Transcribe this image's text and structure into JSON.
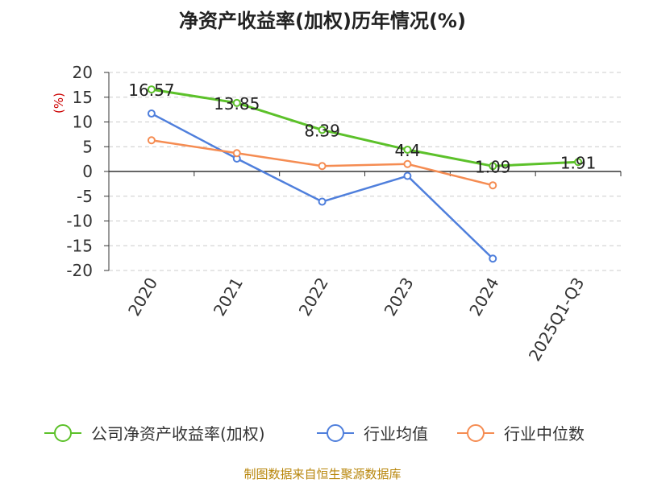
{
  "title": "净资产收益率(加权)历年情况(%)",
  "source": "制图数据来自恒生聚源数据库",
  "chart_data": {
    "type": "line",
    "title": "净资产收益率(加权)历年情况(%)",
    "ylabel": "(%)",
    "ylim": [
      -20,
      20
    ],
    "yticks": [
      20,
      15,
      10,
      5,
      0,
      -5,
      -10,
      -15,
      -20
    ],
    "categories": [
      "2020",
      "2021",
      "2022",
      "2023",
      "2024",
      "2025Q1-Q3"
    ],
    "grid": true,
    "legend_position": "bottom",
    "series": [
      {
        "name": "公司净资产收益率(加权)",
        "color": "#5cc12a",
        "values": [
          16.57,
          13.85,
          8.39,
          4.4,
          1.09,
          1.91
        ],
        "labels": [
          "16.57",
          "13.85",
          "8.39",
          "4.4",
          "1.09",
          "1.91"
        ]
      },
      {
        "name": "行业均值",
        "color": "#4f7fdc",
        "values": [
          11.7,
          2.6,
          -6.1,
          -0.9,
          -17.6,
          null
        ]
      },
      {
        "name": "行业中位数",
        "color": "#f58c52",
        "values": [
          6.3,
          3.7,
          1.1,
          1.5,
          -2.8,
          null
        ]
      }
    ]
  }
}
